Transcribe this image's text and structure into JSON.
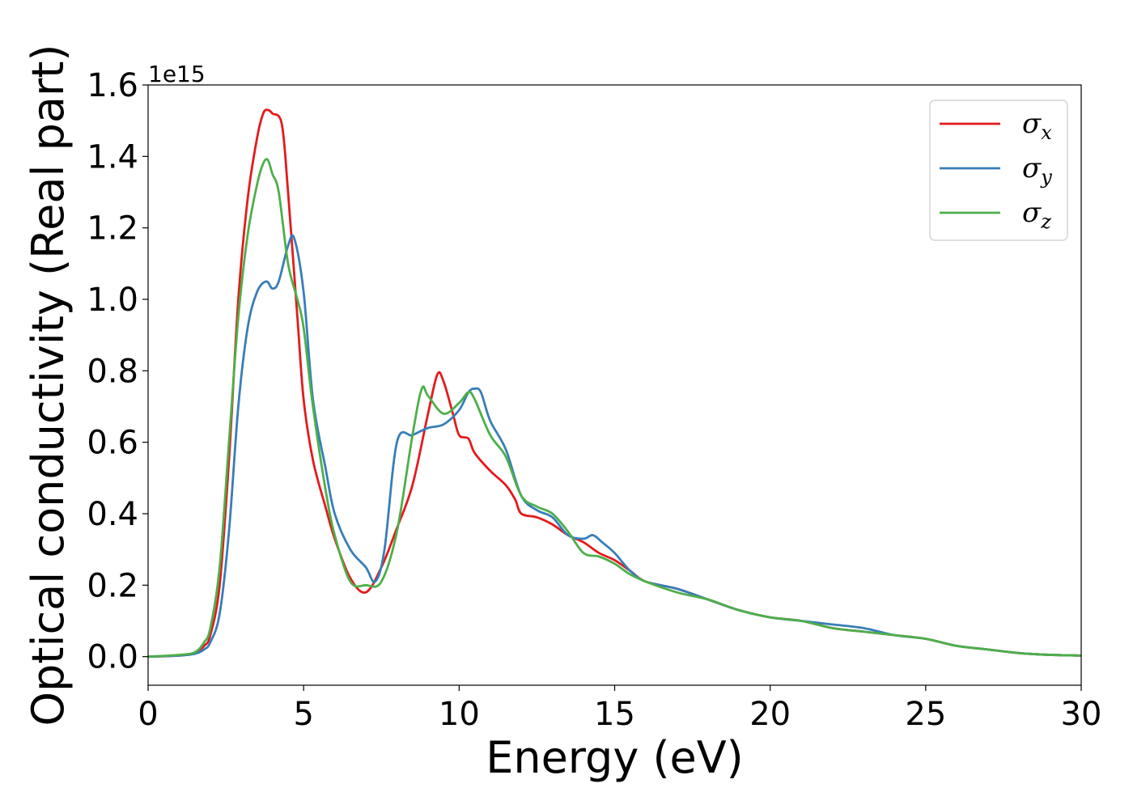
{
  "chart_data": {
    "type": "line",
    "title": "",
    "xlabel": "Energy (eV)",
    "ylabel": "Optical conductivity (Real part)",
    "y_offset_label": "1e15",
    "xlim": [
      0,
      30
    ],
    "ylim": [
      -0.08,
      1.6
    ],
    "xticks": [
      0,
      5,
      10,
      15,
      20,
      25,
      30
    ],
    "xtick_labels": [
      "0",
      "5",
      "10",
      "15",
      "20",
      "25",
      "30"
    ],
    "yticks": [
      0.0,
      0.2,
      0.4,
      0.6,
      0.8,
      1.0,
      1.2,
      1.4,
      1.6
    ],
    "ytick_labels": [
      "0.0",
      "0.2",
      "0.4",
      "0.6",
      "0.8",
      "1.0",
      "1.2",
      "1.4",
      "1.6"
    ],
    "grid": false,
    "legend_position": "top-right",
    "series": [
      {
        "name": "σx",
        "legend_symbol": "σ",
        "legend_subscript": "x",
        "color": "#e41a1c",
        "x": [
          0,
          1,
          1.5,
          1.8,
          2.0,
          2.3,
          2.6,
          2.9,
          3.2,
          3.5,
          3.7,
          3.85,
          4.0,
          4.3,
          4.5,
          4.8,
          5.0,
          5.3,
          5.7,
          6.0,
          6.5,
          7.0,
          7.5,
          8.0,
          8.5,
          9.0,
          9.3,
          9.5,
          9.8,
          10.0,
          10.3,
          10.5,
          11.0,
          11.5,
          11.8,
          12.0,
          12.5,
          13.0,
          13.5,
          14.0,
          14.5,
          15.0,
          15.5,
          16.0,
          17.0,
          18.0,
          19.0,
          20.0,
          21.0,
          22.0,
          23.0,
          24.0,
          25.0,
          26.0,
          27.0,
          28.0,
          29.0,
          30.0
        ],
        "y": [
          0,
          0.003,
          0.01,
          0.03,
          0.06,
          0.2,
          0.55,
          1.0,
          1.28,
          1.45,
          1.52,
          1.53,
          1.52,
          1.49,
          1.3,
          0.95,
          0.72,
          0.55,
          0.42,
          0.33,
          0.22,
          0.18,
          0.25,
          0.36,
          0.48,
          0.68,
          0.79,
          0.77,
          0.68,
          0.62,
          0.61,
          0.57,
          0.52,
          0.48,
          0.44,
          0.4,
          0.39,
          0.37,
          0.34,
          0.32,
          0.29,
          0.27,
          0.24,
          0.21,
          0.19,
          0.16,
          0.13,
          0.11,
          0.1,
          0.08,
          0.07,
          0.06,
          0.05,
          0.03,
          0.02,
          0.01,
          0.005,
          0.003
        ]
      },
      {
        "name": "σy",
        "legend_symbol": "σ",
        "legend_subscript": "y",
        "color": "#377eb8",
        "x": [
          0,
          1,
          1.5,
          1.8,
          2.0,
          2.3,
          2.6,
          2.9,
          3.2,
          3.5,
          3.8,
          4.0,
          4.2,
          4.5,
          4.7,
          5.0,
          5.3,
          5.7,
          6.0,
          6.5,
          7.0,
          7.3,
          7.6,
          8.0,
          8.5,
          9.0,
          9.5,
          10.0,
          10.3,
          10.5,
          10.7,
          11.0,
          11.5,
          12.0,
          12.5,
          13.0,
          13.5,
          14.0,
          14.3,
          14.6,
          15.0,
          15.5,
          16.0,
          17.0,
          18.0,
          19.0,
          20.0,
          21.0,
          22.0,
          23.0,
          24.0,
          25.0,
          26.0,
          27.0,
          28.0,
          29.0,
          30.0
        ],
        "y": [
          0,
          0.003,
          0.008,
          0.02,
          0.04,
          0.12,
          0.35,
          0.7,
          0.92,
          1.02,
          1.05,
          1.03,
          1.05,
          1.15,
          1.17,
          1.02,
          0.72,
          0.53,
          0.4,
          0.3,
          0.25,
          0.21,
          0.3,
          0.6,
          0.62,
          0.64,
          0.65,
          0.69,
          0.74,
          0.75,
          0.74,
          0.66,
          0.58,
          0.45,
          0.41,
          0.39,
          0.34,
          0.33,
          0.34,
          0.32,
          0.29,
          0.24,
          0.21,
          0.19,
          0.16,
          0.13,
          0.11,
          0.1,
          0.09,
          0.08,
          0.06,
          0.05,
          0.03,
          0.02,
          0.01,
          0.005,
          0.003
        ]
      },
      {
        "name": "σz",
        "legend_symbol": "σ",
        "legend_subscript": "z",
        "color": "#4daf4a",
        "x": [
          0,
          1,
          1.5,
          1.8,
          2.0,
          2.3,
          2.6,
          2.9,
          3.2,
          3.5,
          3.7,
          3.85,
          4.0,
          4.2,
          4.5,
          4.8,
          5.0,
          5.3,
          5.7,
          6.0,
          6.5,
          7.0,
          7.5,
          8.0,
          8.5,
          8.8,
          9.0,
          9.5,
          10.0,
          10.3,
          10.5,
          11.0,
          11.5,
          12.0,
          12.5,
          13.0,
          13.5,
          14.0,
          14.5,
          15.0,
          15.5,
          16.0,
          17.0,
          18.0,
          19.0,
          20.0,
          21.0,
          22.0,
          23.0,
          24.0,
          25.0,
          26.0,
          27.0,
          28.0,
          29.0,
          30.0
        ],
        "y": [
          0,
          0.005,
          0.012,
          0.04,
          0.08,
          0.25,
          0.6,
          0.95,
          1.18,
          1.32,
          1.38,
          1.39,
          1.35,
          1.3,
          1.1,
          1.0,
          0.92,
          0.7,
          0.47,
          0.34,
          0.21,
          0.2,
          0.21,
          0.35,
          0.62,
          0.75,
          0.73,
          0.68,
          0.71,
          0.74,
          0.72,
          0.62,
          0.56,
          0.45,
          0.42,
          0.4,
          0.35,
          0.29,
          0.28,
          0.26,
          0.23,
          0.21,
          0.18,
          0.16,
          0.13,
          0.11,
          0.1,
          0.08,
          0.07,
          0.06,
          0.05,
          0.03,
          0.02,
          0.01,
          0.005,
          0.003
        ]
      }
    ]
  }
}
